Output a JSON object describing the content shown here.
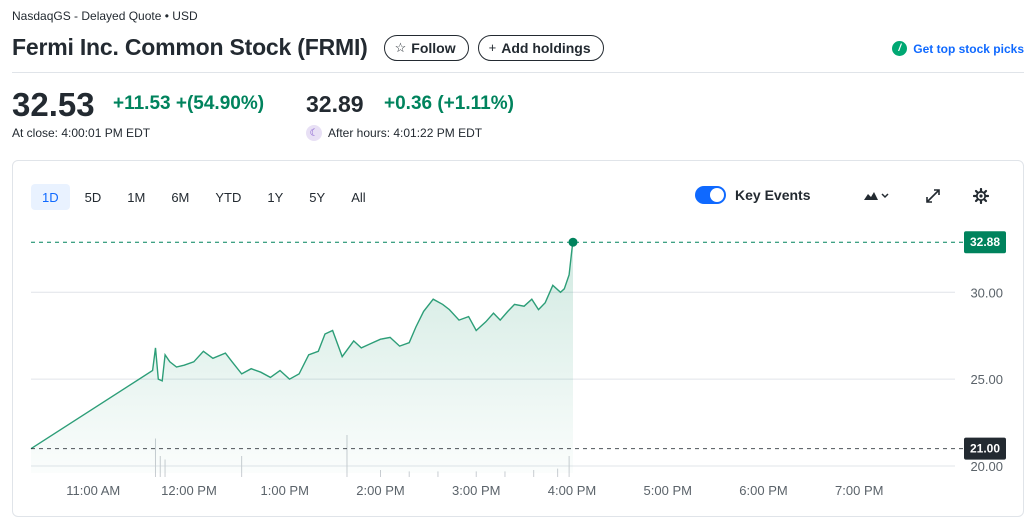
{
  "header": {
    "exchange_line": "NasdaqGS - Delayed Quote • USD",
    "title": "Fermi Inc. Common Stock (FRMI)",
    "follow_label": "Follow",
    "follow_icon": "star-outline-icon",
    "add_holdings_label": "Add holdings",
    "add_icon": "plus-icon",
    "picks_label": "Get top stock picks",
    "picks_icon": "green-badge-icon"
  },
  "quote": {
    "price": "32.53",
    "change": "+11.53",
    "change_pct": "+(54.90%)",
    "close_time": "At close: 4:00:01 PM EDT",
    "after_hours_price": "32.89",
    "after_hours_change": "+0.36",
    "after_hours_change_pct": "(+1.11%)",
    "after_hours_time": "After hours: 4:01:22 PM EDT",
    "after_hours_icon": "moon-icon",
    "positive_color": "#00835d"
  },
  "chart_controls": {
    "ranges": [
      "1D",
      "5D",
      "1M",
      "6M",
      "YTD",
      "1Y",
      "5Y",
      "All"
    ],
    "active_range": "1D",
    "key_events_label": "Key Events",
    "key_events_on": true,
    "chart_type_icon": "mountain-chart-icon",
    "expand_icon": "expand-icon",
    "settings_icon": "gear-icon",
    "accent_color": "#0f69ff"
  },
  "chart_data": {
    "type": "area",
    "x_ticks": [
      "11:00 AM",
      "12:00 PM",
      "1:00 PM",
      "2:00 PM",
      "3:00 PM",
      "4:00 PM",
      "5:00 PM",
      "6:00 PM",
      "7:00 PM"
    ],
    "y_ticks": [
      "30.00",
      "25.00",
      "20.00"
    ],
    "y_tick_values": [
      30,
      25,
      20
    ],
    "ylim": [
      19.6,
      34.1
    ],
    "x_range_hours": [
      10.35,
      20.0
    ],
    "current_price_tag": "32.88",
    "current_price_value": 32.88,
    "previous_close_tag": "21.00",
    "previous_close_value": 21.0,
    "line_color": "#2d9e78",
    "grid": true,
    "series": [
      {
        "t": [
          10.35,
          11.62,
          11.65,
          11.68,
          11.72,
          11.75,
          11.8,
          11.87,
          11.95,
          12.05,
          12.15,
          12.25,
          12.38,
          12.45,
          12.55,
          12.65,
          12.75,
          12.85,
          12.95,
          13.05,
          13.15,
          13.25,
          13.35,
          13.42,
          13.5,
          13.6,
          13.72,
          13.8,
          13.88,
          14.0,
          14.1,
          14.2,
          14.3,
          14.37,
          14.45,
          14.55,
          14.65,
          14.72,
          14.82,
          14.92,
          15.0,
          15.1,
          15.18,
          15.25,
          15.33,
          15.4,
          15.5,
          15.58,
          15.65,
          15.72,
          15.8,
          15.88,
          15.92,
          15.97,
          16.0,
          16.01
        ],
        "v": [
          21.0,
          25.5,
          26.8,
          25.0,
          24.9,
          26.4,
          26.0,
          25.7,
          25.8,
          26.0,
          26.6,
          26.2,
          26.5,
          26.0,
          25.3,
          25.6,
          25.4,
          25.1,
          25.5,
          25.0,
          25.3,
          26.4,
          26.6,
          27.6,
          27.8,
          26.3,
          27.2,
          26.8,
          27.0,
          27.3,
          27.4,
          26.9,
          27.1,
          28.0,
          28.9,
          29.6,
          29.3,
          29.0,
          28.4,
          28.6,
          27.8,
          28.3,
          28.8,
          28.4,
          28.9,
          29.3,
          29.2,
          29.6,
          29.0,
          29.4,
          30.4,
          30.0,
          30.2,
          31.0,
          32.5,
          32.88
        ]
      }
    ],
    "volume": {
      "t": [
        11.65,
        11.7,
        11.75,
        12.55,
        13.65,
        14.0,
        14.3,
        14.6,
        15.0,
        15.3,
        15.6,
        15.85,
        15.97
      ],
      "v": [
        0.55,
        0.3,
        0.25,
        0.3,
        0.6,
        0.1,
        0.08,
        0.08,
        0.08,
        0.08,
        0.1,
        0.12,
        0.3
      ]
    }
  }
}
